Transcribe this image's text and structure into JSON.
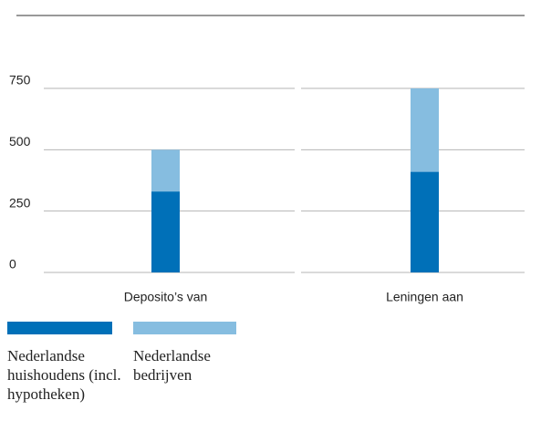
{
  "chart_data": {
    "type": "stacked-bar",
    "categories": [
      "Deposito’s van",
      "Leningen aan"
    ],
    "series": [
      {
        "name": "Nederlandse huishoudens (incl. hypotheken)",
        "color": "#0070b8",
        "values": [
          330,
          410
        ]
      },
      {
        "name": "Nederlandse bedrijven",
        "color": "#86bde0",
        "values": [
          170,
          340
        ]
      }
    ],
    "ylim": [
      0,
      750
    ],
    "yticks": [
      0,
      250,
      500,
      750
    ],
    "grid": true
  }
}
